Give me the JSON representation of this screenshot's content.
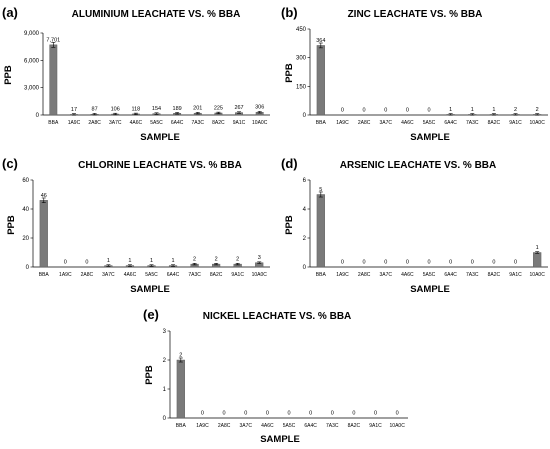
{
  "chart_data": [
    {
      "panel": "(a)",
      "type": "bar",
      "title": "ALUMINIUM LEACHATE VS. % BBA",
      "xlabel": "SAMPLE",
      "ylabel": "PPB",
      "categories": [
        "BBA",
        "1A9C",
        "2A8C",
        "3A7C",
        "4A6C",
        "5A5C",
        "6A4C",
        "7A3C",
        "8A2C",
        "9A1C",
        "10A0C"
      ],
      "values": [
        7701,
        17,
        87,
        106,
        118,
        154,
        189,
        201,
        225,
        267,
        306
      ],
      "data_labels": [
        "7,701",
        "17",
        "87",
        "106",
        "118",
        "154",
        "189",
        "201",
        "225",
        "267",
        "306"
      ],
      "ylim": [
        0,
        9000
      ],
      "yticks": [
        0,
        3000,
        6000,
        9000
      ],
      "ytick_labels": [
        "0",
        "3,000",
        "6,000",
        "9,000"
      ],
      "error_bars": true
    },
    {
      "panel": "(b)",
      "type": "bar",
      "title": "ZINC LEACHATE VS. % BBA",
      "xlabel": "SAMPLE",
      "ylabel": "PPB",
      "categories": [
        "BBA",
        "1A9C",
        "2A8C",
        "3A7C",
        "4A6C",
        "5A5C",
        "6A4C",
        "7A3C",
        "8A2C",
        "9A1C",
        "10A0C"
      ],
      "values": [
        364,
        0,
        0,
        0,
        0,
        0,
        1,
        1,
        1,
        2,
        2
      ],
      "data_labels": [
        "364",
        "0",
        "0",
        "0",
        "0",
        "0",
        "1",
        "1",
        "1",
        "2",
        "2"
      ],
      "ylim": [
        0,
        450
      ],
      "yticks": [
        0,
        150,
        300,
        450
      ],
      "ytick_labels": [
        "0",
        "150",
        "300",
        "450"
      ],
      "error_bars": true
    },
    {
      "panel": "(c)",
      "type": "bar",
      "title": "CHLORINE LEACHATE VS. % BBA",
      "xlabel": "SAMPLE",
      "ylabel": "PPB",
      "categories": [
        "BBA",
        "1A9C",
        "2A8C",
        "3A7C",
        "4A6C",
        "5A5C",
        "6A4C",
        "7A3C",
        "8A2C",
        "9A1C",
        "10A0C"
      ],
      "values": [
        46,
        0,
        0,
        1,
        1,
        1,
        1,
        2,
        2,
        2,
        3
      ],
      "data_labels": [
        "46",
        "0",
        "0",
        "1",
        "1",
        "1",
        "1",
        "2",
        "2",
        "2",
        "3"
      ],
      "ylim": [
        0,
        60
      ],
      "yticks": [
        0,
        20,
        40,
        60
      ],
      "ytick_labels": [
        "0",
        "20",
        "40",
        "60"
      ],
      "error_bars": true
    },
    {
      "panel": "(d)",
      "type": "bar",
      "title": "ARSENIC LEACHATE VS. % BBA",
      "xlabel": "SAMPLE",
      "ylabel": "PPB",
      "categories": [
        "BBA",
        "1A9C",
        "2A8C",
        "3A7C",
        "4A6C",
        "5A5C",
        "6A4C",
        "7A3C",
        "8A2C",
        "9A1C",
        "10A0C"
      ],
      "values": [
        5,
        0,
        0,
        0,
        0,
        0,
        0,
        0,
        0,
        0,
        1
      ],
      "data_labels": [
        "5",
        "0",
        "0",
        "0",
        "0",
        "0",
        "0",
        "0",
        "0",
        "0",
        "1"
      ],
      "ylim": [
        0,
        6
      ],
      "yticks": [
        0,
        2,
        4,
        6
      ],
      "ytick_labels": [
        "0",
        "2",
        "4",
        "6"
      ],
      "error_bars": true
    },
    {
      "panel": "(e)",
      "type": "bar",
      "title": "NICKEL LEACHATE VS. % BBA",
      "xlabel": "SAMPLE",
      "ylabel": "PPB",
      "categories": [
        "BBA",
        "1A9C",
        "2A8C",
        "3A7C",
        "4A6C",
        "5A5C",
        "6A4C",
        "7A3C",
        "8A2C",
        "9A1C",
        "10A0C"
      ],
      "values": [
        2,
        0,
        0,
        0,
        0,
        0,
        0,
        0,
        0,
        0,
        0
      ],
      "data_labels": [
        "2",
        "0",
        "0",
        "0",
        "0",
        "0",
        "0",
        "0",
        "0",
        "0",
        "0"
      ],
      "ylim": [
        0,
        3
      ],
      "yticks": [
        0,
        1,
        2,
        3
      ],
      "ytick_labels": [
        "0",
        "1",
        "2",
        "3"
      ],
      "error_bars": true
    }
  ],
  "colors": {
    "bar": "#7a7a7a",
    "axis": "#000000"
  }
}
